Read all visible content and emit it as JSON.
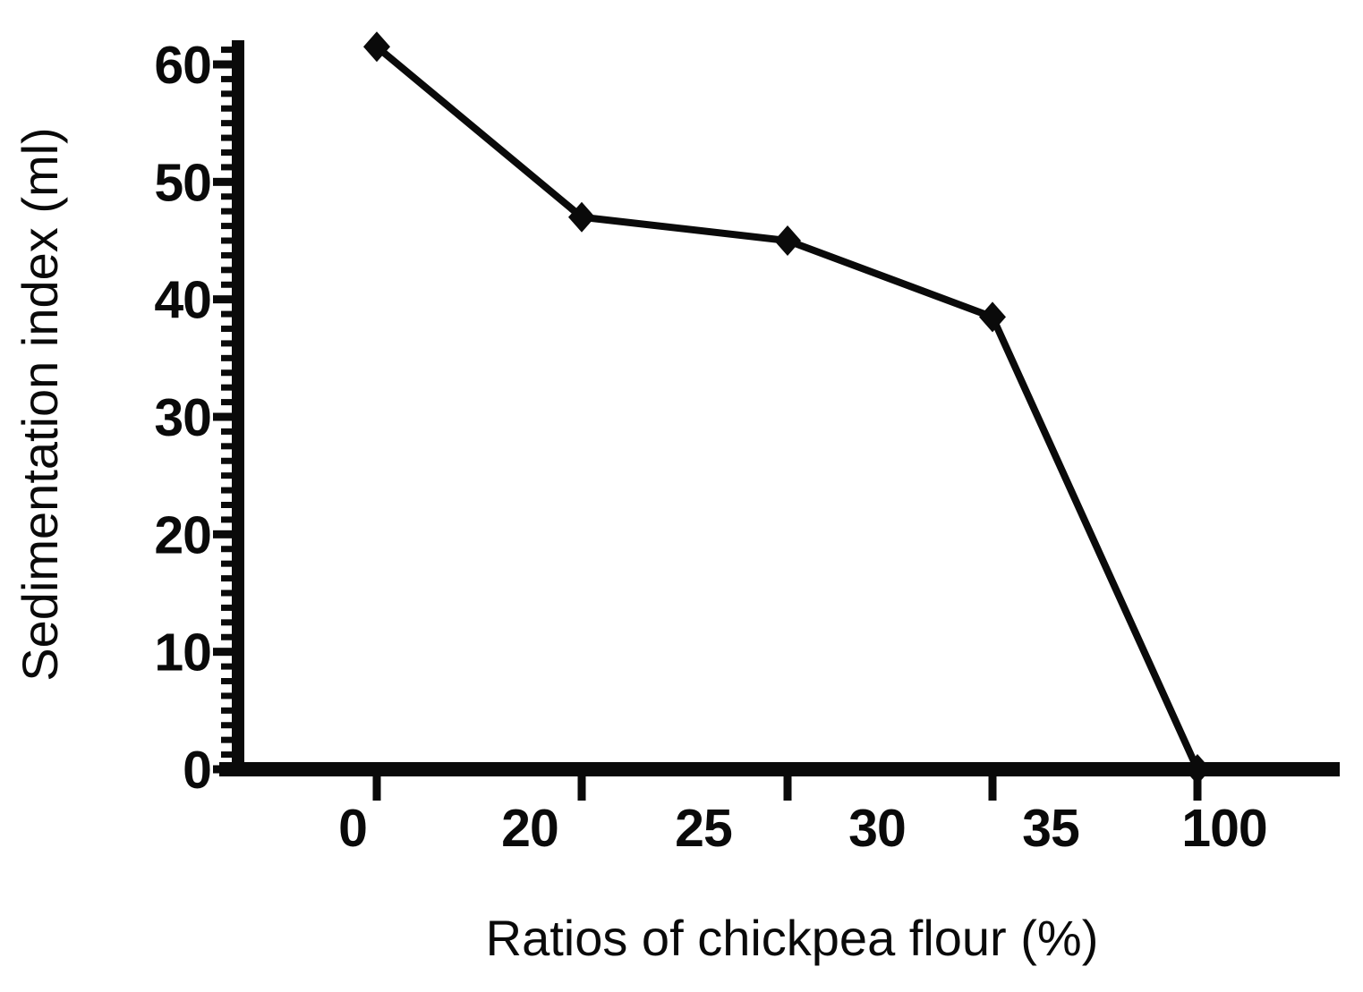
{
  "page": {
    "background": "#ffffff",
    "ink_color": "#0a0a0a"
  },
  "chart_data": {
    "type": "line",
    "title": "",
    "xlabel": "Ratios of chickpea flour (%)",
    "ylabel": "Sedimentation index (ml)",
    "x_tick_labels": [
      "0",
      "20",
      "25",
      "30",
      "35",
      "100"
    ],
    "y_tick_labels": [
      "0",
      "10",
      "20",
      "30",
      "40",
      "50",
      "60"
    ],
    "y_major_ticks": [
      0,
      10,
      20,
      30,
      40,
      50,
      60
    ],
    "y_minor_step": 1.25,
    "ylim": [
      0,
      62
    ],
    "xlim_labels": [
      0,
      100
    ],
    "grid": false,
    "legend": "none",
    "marker": "diamond",
    "line_color": "#0a0a0a",
    "marker_color": "#0a0a0a",
    "series": [
      {
        "name": "Sedimentation index",
        "x": [
          "0",
          "20",
          "25",
          "35",
          "100"
        ],
        "values": [
          61.5,
          47,
          45,
          38.5,
          0
        ]
      }
    ],
    "notes": "Single black series; diamond markers on evenly spaced axis ticks; dense minor tick ruler on y-axis; no grid, no legend."
  }
}
